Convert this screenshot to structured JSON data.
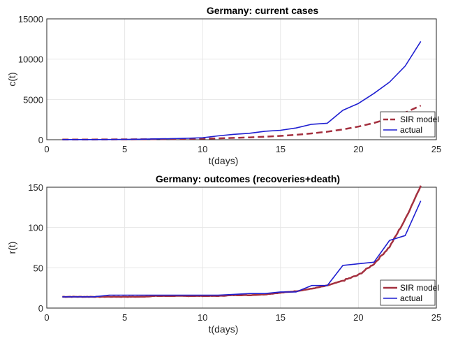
{
  "chart_data": [
    {
      "type": "line",
      "title": "Germany: current cases",
      "xlabel": "t(days)",
      "ylabel": "c(t)",
      "xlim": [
        0,
        25
      ],
      "ylim": [
        0,
        15000
      ],
      "xticks": [
        0,
        5,
        10,
        15,
        20,
        25
      ],
      "yticks": [
        0,
        5000,
        10000,
        15000
      ],
      "xtick_labels": [
        "0",
        "5",
        "10",
        "15",
        "20",
        "25"
      ],
      "ytick_labels": [
        "0",
        "5000",
        "10000",
        "15000"
      ],
      "grid": true,
      "legend_position": "bottom-right",
      "series": [
        {
          "name": "SIR model",
          "color": "#a4303f",
          "style": "dashed",
          "x": [
            1,
            2,
            3,
            4,
            5,
            6,
            7,
            8,
            9,
            10,
            11,
            12,
            13,
            14,
            15,
            16,
            17,
            18,
            19,
            20,
            21,
            22,
            23,
            24
          ],
          "y": [
            16,
            20,
            25,
            32,
            40,
            52,
            66,
            85,
            108,
            138,
            177,
            226,
            290,
            371,
            475,
            608,
            779,
            997,
            1275,
            1630,
            2080,
            2650,
            3360,
            4240
          ]
        },
        {
          "name": "actual",
          "color": "#1f1fd1",
          "style": "solid",
          "x": [
            1,
            2,
            3,
            4,
            5,
            6,
            7,
            8,
            9,
            10,
            11,
            12,
            13,
            14,
            15,
            16,
            17,
            18,
            19,
            20,
            21,
            22,
            23,
            24
          ],
          "y": [
            16,
            16,
            20,
            30,
            40,
            60,
            100,
            130,
            180,
            240,
            480,
            670,
            800,
            1050,
            1170,
            1460,
            1920,
            2050,
            3650,
            4500,
            5750,
            7150,
            9150,
            12200
          ]
        }
      ]
    },
    {
      "type": "line",
      "title": "Germany: outcomes (recoveries+death)",
      "xlabel": "t(days)",
      "ylabel": "r(t)",
      "xlim": [
        0,
        25
      ],
      "ylim": [
        0,
        150
      ],
      "xticks": [
        0,
        5,
        10,
        15,
        20,
        25
      ],
      "yticks": [
        0,
        50,
        100,
        150
      ],
      "xtick_labels": [
        "0",
        "5",
        "10",
        "15",
        "20",
        "25"
      ],
      "ytick_labels": [
        "0",
        "50",
        "100",
        "150"
      ],
      "grid": true,
      "legend_position": "bottom-right",
      "series": [
        {
          "name": "SIR model",
          "color": "#a4303f",
          "style": "solid",
          "x": [
            1,
            2,
            3,
            4,
            5,
            6,
            7,
            8,
            9,
            10,
            11,
            12,
            13,
            14,
            15,
            16,
            17,
            18,
            19,
            20,
            21,
            22,
            23,
            24
          ],
          "y": [
            14,
            14,
            14,
            14,
            14,
            14,
            15,
            15,
            15,
            15,
            15,
            16,
            16,
            17,
            19,
            21,
            24,
            28,
            34,
            41,
            55,
            76,
            110,
            152
          ]
        },
        {
          "name": "actual",
          "color": "#1f1fd1",
          "style": "solid",
          "x": [
            1,
            2,
            3,
            4,
            5,
            6,
            7,
            8,
            9,
            10,
            11,
            12,
            13,
            14,
            15,
            16,
            17,
            18,
            19,
            20,
            21,
            22,
            23,
            24
          ],
          "y": [
            14,
            14,
            14,
            16,
            16,
            16,
            16,
            16,
            16,
            16,
            16,
            17,
            18,
            18,
            20,
            20,
            28,
            28,
            53,
            55,
            57,
            84,
            90,
            133
          ]
        }
      ]
    }
  ],
  "legend_labels": [
    "SIR model",
    "actual"
  ]
}
